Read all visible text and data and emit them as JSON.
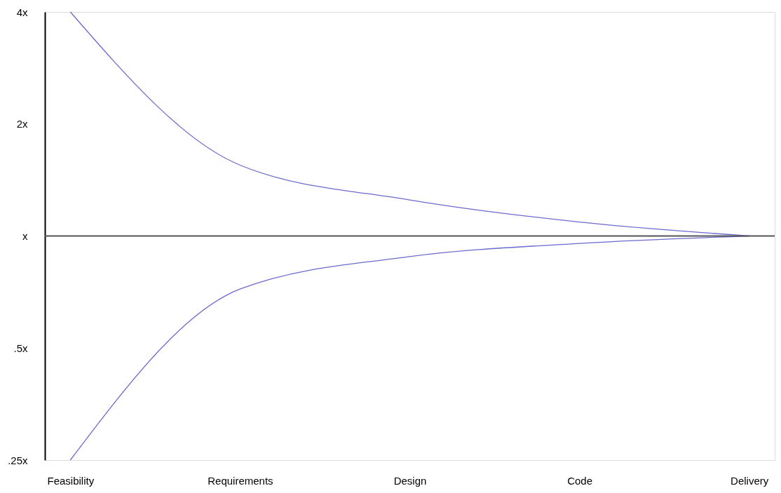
{
  "chart_data": {
    "type": "line",
    "log": "y",
    "categories": [
      "Feasibility",
      "Requirements",
      "Design",
      "Code",
      "Delivery"
    ],
    "ylim": [
      0.25,
      4
    ],
    "yticks": [
      {
        "value": 0.25,
        "label": ".25x"
      },
      {
        "value": 0.5,
        "label": ".5x"
      },
      {
        "value": 1,
        "label": "x"
      },
      {
        "value": 2,
        "label": "2x"
      },
      {
        "value": 4,
        "label": "4x"
      }
    ],
    "series": [
      {
        "color": "#6a6ad0",
        "values": [
          4.0,
          1.55,
          1.25,
          1.09,
          1.0
        ]
      },
      {
        "color": "#6a6ad0",
        "values": [
          0.25,
          0.72,
          0.88,
          0.955,
          1.0
        ]
      }
    ],
    "ref_lines": [
      {
        "axis": "y",
        "value": 1,
        "color": "#555555"
      }
    ],
    "grid": false,
    "marker": "none",
    "line_style": "solid"
  }
}
